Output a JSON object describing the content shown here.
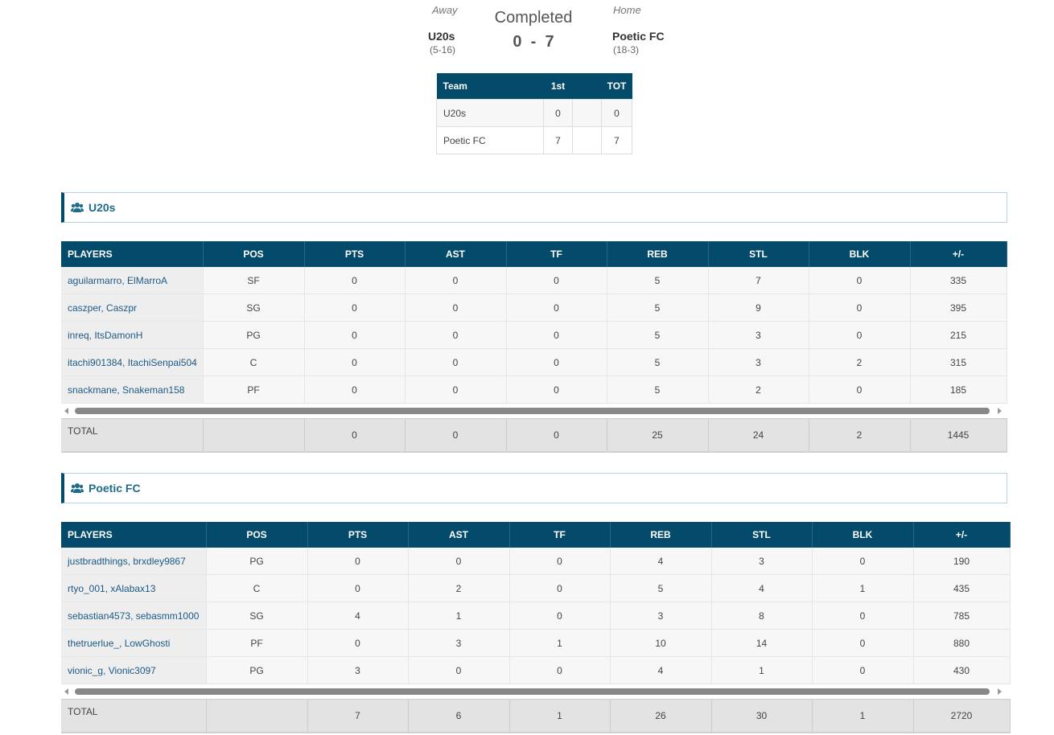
{
  "header": {
    "away_label": "Away",
    "away_name": "U20s",
    "away_record": "(5-16)",
    "status": "Completed",
    "away_score": 0,
    "score_separator": "-",
    "home_score": 7,
    "home_label": "Home",
    "home_name": "Poetic FC",
    "home_record": "(18-3)"
  },
  "linescore": {
    "headers": [
      "Team",
      "1st",
      "TOT"
    ],
    "rows": [
      {
        "team": "U20s",
        "q1": 0,
        "tot": 0
      },
      {
        "team": "Poetic FC",
        "q1": 7,
        "tot": 7
      }
    ]
  },
  "teams": [
    {
      "name": "U20s",
      "columns": [
        "PLAYERS",
        "POS",
        "PTS",
        "AST",
        "TF",
        "REB",
        "STL",
        "BLK",
        "+/-"
      ],
      "players": [
        [
          "aguilarmarro, ElMarroA",
          "SF",
          0,
          0,
          0,
          5,
          7,
          0,
          335
        ],
        [
          "caszper, Caszpr",
          "SG",
          0,
          0,
          0,
          5,
          9,
          0,
          395
        ],
        [
          "inreq, ItsDamonH",
          "PG",
          0,
          0,
          0,
          5,
          3,
          0,
          215
        ],
        [
          "itachi901384, ItachiSenpai504",
          "C",
          0,
          0,
          0,
          5,
          3,
          2,
          315
        ],
        [
          "snackmane, Snakeman158",
          "PF",
          0,
          0,
          0,
          5,
          2,
          0,
          185
        ]
      ],
      "total_label": "TOTAL",
      "totals": [
        0,
        0,
        0,
        25,
        24,
        2,
        1445
      ]
    },
    {
      "name": "Poetic FC",
      "columns": [
        "PLAYERS",
        "POS",
        "PTS",
        "AST",
        "TF",
        "REB",
        "STL",
        "BLK",
        "+/-"
      ],
      "players": [
        [
          "justbradthings, brxdley9867",
          "PG",
          0,
          0,
          0,
          4,
          3,
          0,
          190
        ],
        [
          "rtyo_001, xAlabax13",
          "C",
          0,
          2,
          0,
          5,
          4,
          1,
          435
        ],
        [
          "sebastian4573, sebasmm1000",
          "SG",
          4,
          1,
          0,
          3,
          8,
          0,
          785
        ],
        [
          "thetruerlue_, LowGhosti",
          "PF",
          0,
          3,
          1,
          10,
          14,
          0,
          880
        ],
        [
          "vionic_g, Vionic3097",
          "PG",
          3,
          0,
          0,
          4,
          1,
          0,
          430
        ]
      ],
      "total_label": "TOTAL",
      "totals": [
        7,
        6,
        1,
        26,
        30,
        1,
        2720
      ]
    }
  ]
}
